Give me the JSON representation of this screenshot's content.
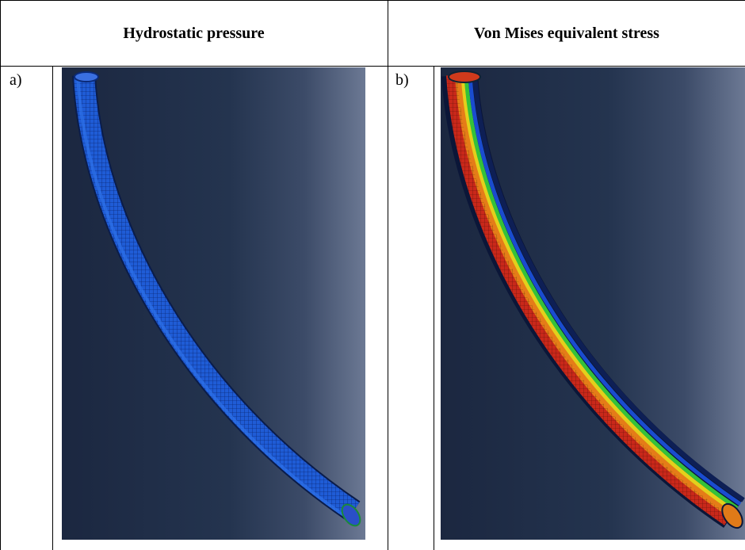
{
  "table": {
    "columns": [
      {
        "header": "Hydrostatic pressure"
      },
      {
        "header": "Von Mises equivalent stress"
      }
    ],
    "rows": [
      {
        "labels": [
          "a)",
          "b)"
        ]
      }
    ]
  },
  "figures": {
    "a": {
      "content": "finite-element mesh of curved pipe, uniform blue contour"
    },
    "b": {
      "content": "finite-element mesh of curved pipe, banded red-orange-yellow-green-blue contour"
    }
  },
  "colors": {
    "background_dark": "#1c2a44",
    "background_light": "#6a7792",
    "mesh_blue": "#1f5fd8",
    "stress_red": "#d2301a",
    "stress_orange": "#e8841a",
    "stress_yellow": "#e6d21c",
    "stress_green": "#35c23a",
    "stress_blue": "#1a4bd0"
  }
}
